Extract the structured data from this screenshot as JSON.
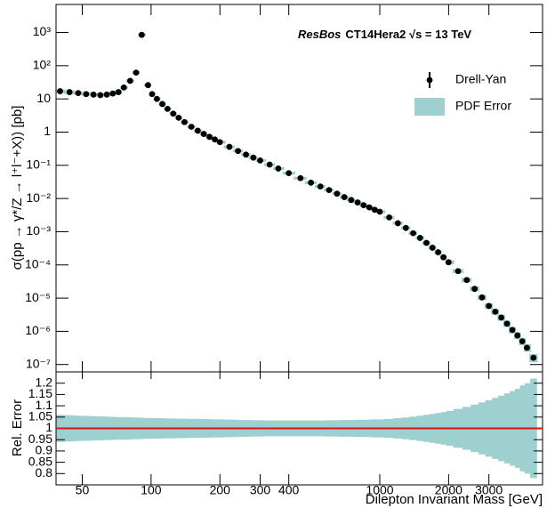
{
  "chart_data": {
    "type": "scatter",
    "title": "ResBos",
    "subtitle": "CT14Hera2 √s = 13 TeV",
    "y_label": "σ(pp → γ*/Z → l⁺l⁻+X)) [pb]",
    "x_label": "Dilepton Invariant Mass [GeV]",
    "ratio_label": "Rel. Error",
    "xscale": "log",
    "yscale": "log",
    "xlim": [
      38.4,
      5150
    ],
    "ylim": [
      6e-08,
      7000
    ],
    "xticks": [
      50,
      100,
      200,
      300,
      400,
      1000,
      2000,
      3000
    ],
    "yticks": [
      {
        "value": 1e-07,
        "label": "10⁻⁷"
      },
      {
        "value": 1e-06,
        "label": "10⁻⁶"
      },
      {
        "value": 1e-05,
        "label": "10⁻⁵"
      },
      {
        "value": 0.0001,
        "label": "10⁻⁴"
      },
      {
        "value": 0.001,
        "label": "10⁻³"
      },
      {
        "value": 0.01,
        "label": "10⁻²"
      },
      {
        "value": 0.1,
        "label": "10⁻¹"
      },
      1,
      10,
      {
        "value": 100,
        "label": "10²"
      },
      {
        "value": 1000,
        "label": "10³"
      }
    ],
    "ratio_ylim": [
      0.75,
      1.25
    ],
    "ratio_yticks": [
      0.8,
      0.85,
      0.9,
      0.95,
      1,
      1.05,
      1.1,
      1.15,
      1.2
    ],
    "ratio_reference": 1,
    "ratio_reference_color": "#e01010",
    "legend": "upper right",
    "x": [
      40,
      44,
      48,
      52,
      56,
      60,
      64,
      68,
      72,
      76,
      81,
      86,
      91,
      97,
      101,
      106,
      112,
      118,
      125,
      132,
      140,
      150,
      160,
      170,
      180,
      190,
      200,
      220,
      240,
      260,
      280,
      300,
      330,
      360,
      400,
      450,
      500,
      550,
      600,
      650,
      700,
      750,
      800,
      850,
      900,
      950,
      1000,
      1100,
      1200,
      1300,
      1400,
      1500,
      1600,
      1700,
      1800,
      1900,
      2000,
      2200,
      2400,
      2600,
      2800,
      3000,
      3200,
      3400,
      3600,
      3800,
      4000,
      4200,
      4400,
      4700
    ],
    "series": [
      {
        "name": "Drell-Yan",
        "color": "#000000",
        "values": [
          17,
          16,
          15,
          14,
          13.5,
          13,
          13.5,
          14.5,
          16,
          22,
          35,
          62,
          850,
          26,
          14,
          10,
          7,
          5,
          3.6,
          2.7,
          2.0,
          1.45,
          1.1,
          0.88,
          0.72,
          0.6,
          0.5,
          0.36,
          0.27,
          0.21,
          0.17,
          0.14,
          0.105,
          0.08,
          0.058,
          0.041,
          0.03,
          0.023,
          0.018,
          0.014,
          0.011,
          0.009,
          0.0076,
          0.0063,
          0.0054,
          0.0046,
          0.004,
          0.0027,
          0.0018,
          0.0013,
          0.0009,
          0.00065,
          0.00046,
          0.00033,
          0.00024,
          0.00017,
          0.00012,
          6.5e-05,
          3.5e-05,
          1.9e-05,
          1.05e-05,
          5.8e-06,
          3.9e-06,
          2.6e-06,
          1.7e-06,
          1.1e-06,
          7.5e-07,
          5e-07,
          3.2e-07,
          1.6e-07
        ]
      },
      {
        "name": "PDF Error",
        "color": "#9dd0cf",
        "values": [
          0.06,
          0.058,
          0.056,
          0.055,
          0.054,
          0.053,
          0.052,
          0.051,
          0.05,
          0.05,
          0.049,
          0.048,
          0.047,
          0.046,
          0.046,
          0.045,
          0.045,
          0.044,
          0.044,
          0.043,
          0.043,
          0.042,
          0.042,
          0.041,
          0.041,
          0.04,
          0.04,
          0.039,
          0.038,
          0.037,
          0.036,
          0.036,
          0.035,
          0.035,
          0.035,
          0.035,
          0.035,
          0.035,
          0.036,
          0.036,
          0.037,
          0.037,
          0.038,
          0.038,
          0.039,
          0.04,
          0.04,
          0.042,
          0.045,
          0.048,
          0.052,
          0.056,
          0.06,
          0.064,
          0.068,
          0.072,
          0.077,
          0.086,
          0.095,
          0.105,
          0.115,
          0.125,
          0.135,
          0.145,
          0.155,
          0.165,
          0.175,
          0.19,
          0.2,
          0.22
        ]
      }
    ]
  }
}
